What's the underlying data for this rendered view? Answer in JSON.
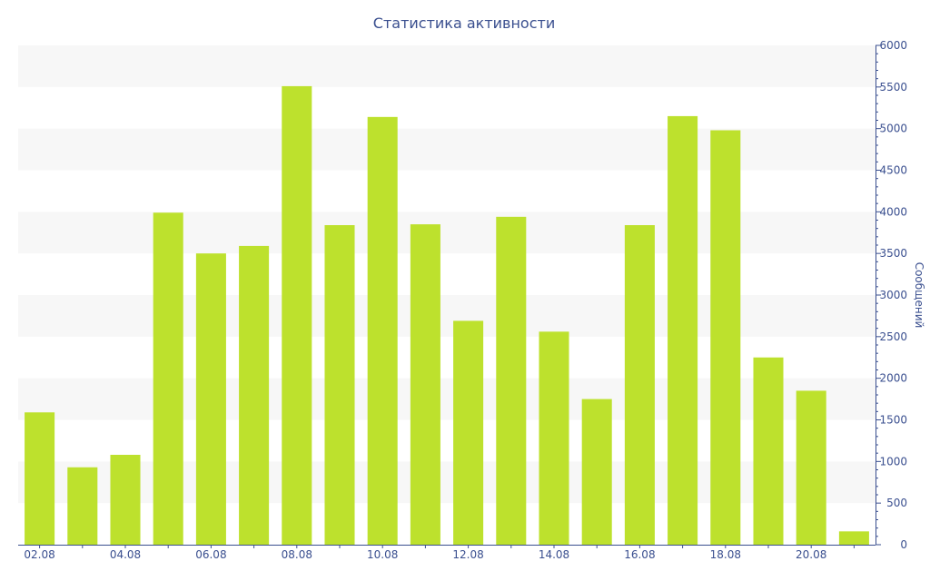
{
  "chart_data": {
    "type": "bar",
    "title": "Статистика активности",
    "ylabel": "Сообщений",
    "xlabel": "",
    "ylim": [
      0,
      6000
    ],
    "y_ticks": [
      0,
      500,
      1000,
      1500,
      2000,
      2500,
      3000,
      3500,
      4000,
      4500,
      5000,
      5500,
      6000
    ],
    "y_axis_side": "right",
    "grid": "alternating horizontal bands",
    "bar_color": "#bde12d",
    "band_color": "#f7f7f7",
    "text_color": "#3a4f8f",
    "axis_color": "#3a4f8f",
    "categories": [
      "02.08",
      "03.08",
      "04.08",
      "05.08",
      "06.08",
      "07.08",
      "08.08",
      "09.08",
      "10.08",
      "11.08",
      "12.08",
      "13.08",
      "14.08",
      "15.08",
      "16.08",
      "17.08",
      "18.08",
      "19.08",
      "20.08",
      "21.08"
    ],
    "x_tick_labels": [
      "02.08",
      "04.08",
      "06.08",
      "08.08",
      "10.08",
      "12.08",
      "14.08",
      "16.08",
      "18.08",
      "20.08"
    ],
    "values": [
      1590,
      930,
      1080,
      3990,
      3500,
      3590,
      5510,
      3840,
      5140,
      3850,
      2690,
      3940,
      2560,
      1750,
      3840,
      5150,
      4980,
      2250,
      1850,
      160
    ]
  }
}
